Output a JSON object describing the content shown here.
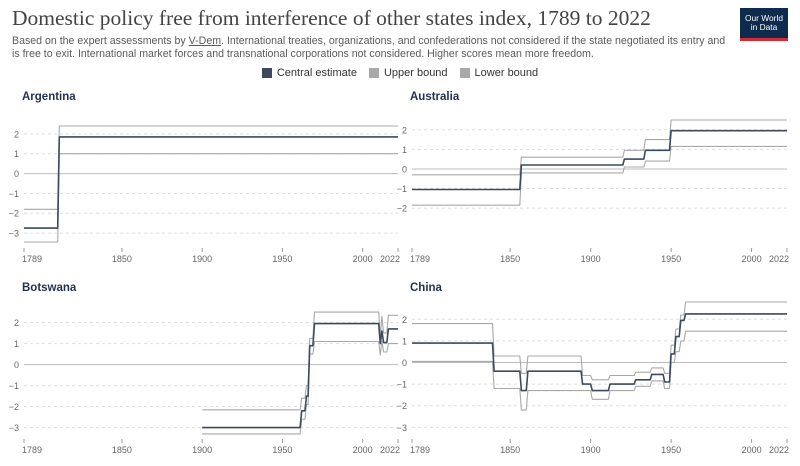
{
  "header": {
    "title": "Domestic policy free from interference of other states index, 1789 to 2022",
    "subtitle_1": "Based on the expert assessments by ",
    "subtitle_link": "V-Dem",
    "subtitle_2": ". International treaties, organizations, and confederations not considered if the state negotiated its entry and is free to exit. International market forces and transnational corporations not considered. Higher scores mean more freedom.",
    "logo_line1": "Our World",
    "logo_line2": "in Data"
  },
  "legend": [
    {
      "label": "Central estimate",
      "color": "#3d4a5e"
    },
    {
      "label": "Upper bound",
      "color": "#a8a8a8"
    },
    {
      "label": "Lower bound",
      "color": "#a8a8a8"
    }
  ],
  "colors": {
    "central": "#3d4a5e",
    "bounds": "#a8a8a8",
    "grid": "#dddddd",
    "zero": "#bbbbbb",
    "panel_title": "#1f3250"
  },
  "chart_data": [
    {
      "type": "line",
      "title": "Argentina",
      "xlim": [
        1789,
        2022
      ],
      "ylim": [
        -3.5,
        2.6
      ],
      "yticks": [
        -3,
        -2,
        -1,
        0,
        1,
        2
      ],
      "xticks": [
        1789,
        1850,
        1900,
        1950,
        2000,
        2022
      ],
      "series": [
        {
          "name": "Central estimate",
          "x": [
            1789,
            1810,
            1811,
            2022
          ],
          "y": [
            -2.75,
            -2.75,
            1.85,
            1.85
          ]
        },
        {
          "name": "Upper bound",
          "x": [
            1789,
            1810,
            1811,
            2022
          ],
          "y": [
            -1.8,
            -1.8,
            2.4,
            2.4
          ]
        },
        {
          "name": "Lower bound",
          "x": [
            1789,
            1810,
            1811,
            2022
          ],
          "y": [
            -3.45,
            -3.45,
            1.0,
            1.0
          ]
        }
      ]
    },
    {
      "type": "line",
      "title": "Australia",
      "xlim": [
        1789,
        2022
      ],
      "ylim": [
        -2.3,
        2.6
      ],
      "yticks": [
        -2,
        -1,
        0,
        1,
        2
      ],
      "xticks": [
        1789,
        1850,
        1900,
        1950,
        2000,
        2022
      ],
      "series": [
        {
          "name": "Central estimate",
          "x": [
            1789,
            1856,
            1857,
            1920,
            1921,
            1933,
            1934,
            1949,
            1950,
            2022
          ],
          "y": [
            -1.05,
            -1.05,
            0.2,
            0.2,
            0.5,
            0.5,
            0.95,
            0.95,
            1.95,
            1.95
          ]
        },
        {
          "name": "Upper bound",
          "x": [
            1789,
            1856,
            1857,
            1920,
            1921,
            1933,
            1934,
            1949,
            1950,
            2022
          ],
          "y": [
            -0.3,
            -0.3,
            0.6,
            0.6,
            0.95,
            0.95,
            1.5,
            1.5,
            2.5,
            2.5
          ]
        },
        {
          "name": "Lower bound",
          "x": [
            1789,
            1856,
            1857,
            1920,
            1921,
            1933,
            1934,
            1949,
            1950,
            2022
          ],
          "y": [
            -1.85,
            -1.85,
            -0.2,
            -0.2,
            0.1,
            0.1,
            0.4,
            0.4,
            1.15,
            1.15
          ]
        }
      ]
    },
    {
      "type": "line",
      "title": "Botswana",
      "xlim": [
        1789,
        2022
      ],
      "ylim": [
        -3.4,
        2.6
      ],
      "yticks": [
        -3,
        -2,
        -1,
        0,
        1,
        2
      ],
      "xticks": [
        1789,
        1850,
        1900,
        1950,
        2000,
        2022
      ],
      "series": [
        {
          "name": "Central estimate",
          "x": [
            1900,
            1961,
            1962,
            1964,
            1965,
            1966,
            1967,
            1969,
            1970,
            2010,
            2011,
            2012,
            2013,
            2015,
            2016,
            2022
          ],
          "y": [
            -3.0,
            -3.0,
            -2.2,
            -2.2,
            -1.5,
            -1.5,
            0.9,
            0.9,
            1.95,
            1.95,
            1.0,
            1.6,
            1.05,
            1.05,
            1.7,
            1.7
          ]
        },
        {
          "name": "Upper bound",
          "x": [
            1900,
            1961,
            1962,
            1964,
            1965,
            1966,
            1967,
            1969,
            1970,
            2010,
            2011,
            2012,
            2013,
            2015,
            2016,
            2022
          ],
          "y": [
            -2.15,
            -2.15,
            -1.6,
            -1.6,
            -1.0,
            -1.0,
            1.25,
            1.25,
            2.5,
            2.5,
            1.35,
            2.3,
            1.5,
            1.5,
            2.35,
            2.35
          ]
        },
        {
          "name": "Lower bound",
          "x": [
            1900,
            1961,
            1962,
            1964,
            1965,
            1966,
            1967,
            1969,
            1970,
            2010,
            2011,
            2012,
            2013,
            2015,
            2016,
            2022
          ],
          "y": [
            -3.3,
            -3.3,
            -2.6,
            -2.6,
            -1.9,
            -1.9,
            0.5,
            0.5,
            1.1,
            1.1,
            0.45,
            1.1,
            0.6,
            0.6,
            1.0,
            1.0
          ]
        }
      ]
    },
    {
      "type": "line",
      "title": "China",
      "xlim": [
        1789,
        2022
      ],
      "ylim": [
        -3.4,
        2.8
      ],
      "yticks": [
        -3,
        -2,
        -1,
        0,
        1,
        2
      ],
      "xticks": [
        1789,
        1850,
        1900,
        1950,
        2000,
        2022
      ],
      "series": [
        {
          "name": "Central estimate",
          "x": [
            1789,
            1839,
            1840,
            1856,
            1857,
            1860,
            1861,
            1894,
            1895,
            1900,
            1901,
            1911,
            1912,
            1927,
            1928,
            1937,
            1938,
            1945,
            1946,
            1949,
            1950,
            1952,
            1953,
            1955,
            1956,
            1958,
            1959,
            2022
          ],
          "y": [
            0.9,
            0.9,
            -0.4,
            -0.4,
            -1.3,
            -1.3,
            -0.4,
            -0.4,
            -1.0,
            -1.0,
            -1.3,
            -1.3,
            -1.0,
            -1.0,
            -0.8,
            -0.8,
            -0.55,
            -0.55,
            -0.9,
            -0.9,
            0.4,
            0.4,
            1.2,
            1.2,
            1.95,
            1.95,
            2.25,
            2.25
          ]
        },
        {
          "name": "Upper bound",
          "x": [
            1789,
            1839,
            1840,
            1856,
            1857,
            1860,
            1861,
            1894,
            1895,
            1900,
            1901,
            1911,
            1912,
            1927,
            1928,
            1937,
            1938,
            1945,
            1946,
            1949,
            1950,
            1952,
            1953,
            1955,
            1956,
            1958,
            1959,
            2022
          ],
          "y": [
            1.8,
            1.8,
            0.3,
            0.3,
            -0.5,
            -0.5,
            0.3,
            0.3,
            -0.6,
            -0.6,
            -0.8,
            -0.8,
            -0.6,
            -0.6,
            -0.45,
            -0.45,
            -0.25,
            -0.25,
            -0.5,
            -0.5,
            0.8,
            0.8,
            1.55,
            1.55,
            2.2,
            2.2,
            2.8,
            2.8
          ]
        },
        {
          "name": "Lower bound",
          "x": [
            1789,
            1839,
            1840,
            1856,
            1857,
            1860,
            1861,
            1894,
            1895,
            1900,
            1901,
            1911,
            1912,
            1927,
            1928,
            1937,
            1938,
            1945,
            1946,
            1949,
            1950,
            1952,
            1953,
            1955,
            1956,
            1958,
            1959,
            2022
          ],
          "y": [
            0.05,
            0.05,
            -1.2,
            -1.2,
            -2.2,
            -2.2,
            -1.3,
            -1.3,
            -1.3,
            -1.3,
            -1.7,
            -1.7,
            -1.3,
            -1.3,
            -1.1,
            -1.1,
            -0.85,
            -0.85,
            -1.2,
            -1.2,
            0.0,
            0.0,
            0.5,
            0.5,
            1.0,
            1.0,
            1.45,
            1.45
          ]
        }
      ]
    }
  ]
}
